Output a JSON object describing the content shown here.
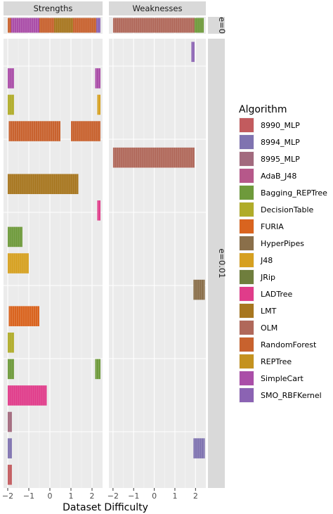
{
  "chart_data": {
    "type": "bar",
    "orientation": "horizontal",
    "xlabel": "Dataset Difficulty",
    "ylabel": "",
    "xlim": [
      -2.2,
      2.5
    ],
    "x_ticks": [
      -2,
      -1,
      0,
      1,
      2
    ],
    "x_tick_labels": [
      "−2",
      "−1",
      "0",
      "1",
      "2"
    ],
    "column_facets": [
      "Strengths",
      "Weaknesses"
    ],
    "row_facets": [
      "e=0",
      "e=0.01"
    ],
    "grid": true,
    "legend": {
      "title": "Algorithm",
      "placement": "right",
      "entries": [
        {
          "name": "8990_MLP",
          "color": "#C25B5E"
        },
        {
          "name": "8994_MLP",
          "color": "#7F73B0"
        },
        {
          "name": "8995_MLP",
          "color": "#A26A7E"
        },
        {
          "name": "AdaB_J48",
          "color": "#B6588A"
        },
        {
          "name": "Bagging_REPTree",
          "color": "#6E9A3B"
        },
        {
          "name": "DecisionTable",
          "color": "#B0AC29"
        },
        {
          "name": "FURIA",
          "color": "#D9641F"
        },
        {
          "name": "HyperPipes",
          "color": "#8A6F4A"
        },
        {
          "name": "J48",
          "color": "#D6A020"
        },
        {
          "name": "JRip",
          "color": "#6F7E3D"
        },
        {
          "name": "LADTree",
          "color": "#E03C8A"
        },
        {
          "name": "LMT",
          "color": "#A7761F"
        },
        {
          "name": "OLM",
          "color": "#B0685A"
        },
        {
          "name": "RandomForest",
          "color": "#C8622E"
        },
        {
          "name": "REPTree",
          "color": "#C4921F"
        },
        {
          "name": "SimpleCart",
          "color": "#AA4EA8"
        },
        {
          "name": "SMO_RBFKernel",
          "color": "#8B63B3"
        }
      ]
    },
    "bars": [
      {
        "facet": "e=0",
        "panel": "Strengths",
        "row": 0,
        "xmin": -2.0,
        "xmax": -1.85,
        "algorithm": "RandomForest"
      },
      {
        "facet": "e=0",
        "panel": "Strengths",
        "row": 0,
        "xmin": -1.85,
        "xmax": -0.5,
        "algorithm": "SimpleCart"
      },
      {
        "facet": "e=0",
        "panel": "Strengths",
        "row": 0,
        "xmin": -0.5,
        "xmax": 0.2,
        "algorithm": "RandomForest"
      },
      {
        "facet": "e=0",
        "panel": "Strengths",
        "row": 0,
        "xmin": 0.2,
        "xmax": 1.1,
        "algorithm": "LMT"
      },
      {
        "facet": "e=0",
        "panel": "Strengths",
        "row": 0,
        "xmin": 1.1,
        "xmax": 2.2,
        "algorithm": "RandomForest"
      },
      {
        "facet": "e=0",
        "panel": "Strengths",
        "row": 0,
        "xmin": 2.2,
        "xmax": 2.4,
        "algorithm": "SMO_RBFKernel"
      },
      {
        "facet": "e=0",
        "panel": "Weaknesses",
        "row": 0,
        "xmin": -2.0,
        "xmax": 1.95,
        "algorithm": "OLM"
      },
      {
        "facet": "e=0",
        "panel": "Weaknesses",
        "row": 0,
        "xmin": 1.95,
        "xmax": 2.4,
        "algorithm": "Bagging_REPTree"
      },
      {
        "facet": "e=0.01",
        "panel": "Weaknesses",
        "row": 0,
        "xmin": 1.8,
        "xmax": 1.95,
        "algorithm": "SMO_RBFKernel"
      },
      {
        "facet": "e=0.01",
        "panel": "Strengths",
        "row": 1,
        "xmin": -2.0,
        "xmax": -1.7,
        "algorithm": "SimpleCart"
      },
      {
        "facet": "e=0.01",
        "panel": "Strengths",
        "row": 1,
        "xmin": 2.15,
        "xmax": 2.4,
        "algorithm": "SimpleCart"
      },
      {
        "facet": "e=0.01",
        "panel": "Strengths",
        "row": 2,
        "xmin": -2.0,
        "xmax": -1.7,
        "algorithm": "DecisionTable"
      },
      {
        "facet": "e=0.01",
        "panel": "Strengths",
        "row": 2,
        "xmin": 2.25,
        "xmax": 2.4,
        "algorithm": "J48"
      },
      {
        "facet": "e=0.01",
        "panel": "Strengths",
        "row": 3,
        "xmin": -1.95,
        "xmax": 0.5,
        "algorithm": "RandomForest"
      },
      {
        "facet": "e=0.01",
        "panel": "Strengths",
        "row": 3,
        "xmin": 1.0,
        "xmax": 2.4,
        "algorithm": "RandomForest"
      },
      {
        "facet": "e=0.01",
        "panel": "Weaknesses",
        "row": 4,
        "xmin": -2.0,
        "xmax": 1.95,
        "algorithm": "OLM"
      },
      {
        "facet": "e=0.01",
        "panel": "Strengths",
        "row": 5,
        "xmin": -2.0,
        "xmax": 1.35,
        "algorithm": "LMT"
      },
      {
        "facet": "e=0.01",
        "panel": "Strengths",
        "row": 6,
        "xmin": 2.25,
        "xmax": 2.4,
        "algorithm": "LADTree"
      },
      {
        "facet": "e=0.01",
        "panel": "Strengths",
        "row": 7,
        "xmin": -2.0,
        "xmax": -1.3,
        "algorithm": "Bagging_REPTree"
      },
      {
        "facet": "e=0.01",
        "panel": "Strengths",
        "row": 8,
        "xmin": -2.0,
        "xmax": -1.0,
        "algorithm": "J48"
      },
      {
        "facet": "e=0.01",
        "panel": "Weaknesses",
        "row": 9,
        "xmin": 1.9,
        "xmax": 2.45,
        "algorithm": "HyperPipes"
      },
      {
        "facet": "e=0.01",
        "panel": "Strengths",
        "row": 10,
        "xmin": -1.95,
        "xmax": -0.5,
        "algorithm": "FURIA"
      },
      {
        "facet": "e=0.01",
        "panel": "Strengths",
        "row": 11,
        "xmin": -2.0,
        "xmax": -1.7,
        "algorithm": "DecisionTable"
      },
      {
        "facet": "e=0.01",
        "panel": "Strengths",
        "row": 12,
        "xmin": -2.0,
        "xmax": -1.7,
        "algorithm": "Bagging_REPTree"
      },
      {
        "facet": "e=0.01",
        "panel": "Strengths",
        "row": 12,
        "xmin": 2.15,
        "xmax": 2.4,
        "algorithm": "Bagging_REPTree"
      },
      {
        "facet": "e=0.01",
        "panel": "Strengths",
        "row": 13,
        "xmin": -2.0,
        "xmax": -0.15,
        "algorithm": "LADTree"
      },
      {
        "facet": "e=0.01",
        "panel": "Strengths",
        "row": 14,
        "xmin": -2.0,
        "xmax": -1.8,
        "algorithm": "8995_MLP"
      },
      {
        "facet": "e=0.01",
        "panel": "Strengths",
        "row": 15,
        "xmin": -2.0,
        "xmax": -1.8,
        "algorithm": "8994_MLP"
      },
      {
        "facet": "e=0.01",
        "panel": "Weaknesses",
        "row": 15,
        "xmin": 1.9,
        "xmax": 2.45,
        "algorithm": "8994_MLP"
      },
      {
        "facet": "e=0.01",
        "panel": "Strengths",
        "row": 16,
        "xmin": -2.0,
        "xmax": -1.8,
        "algorithm": "8990_MLP"
      }
    ]
  }
}
